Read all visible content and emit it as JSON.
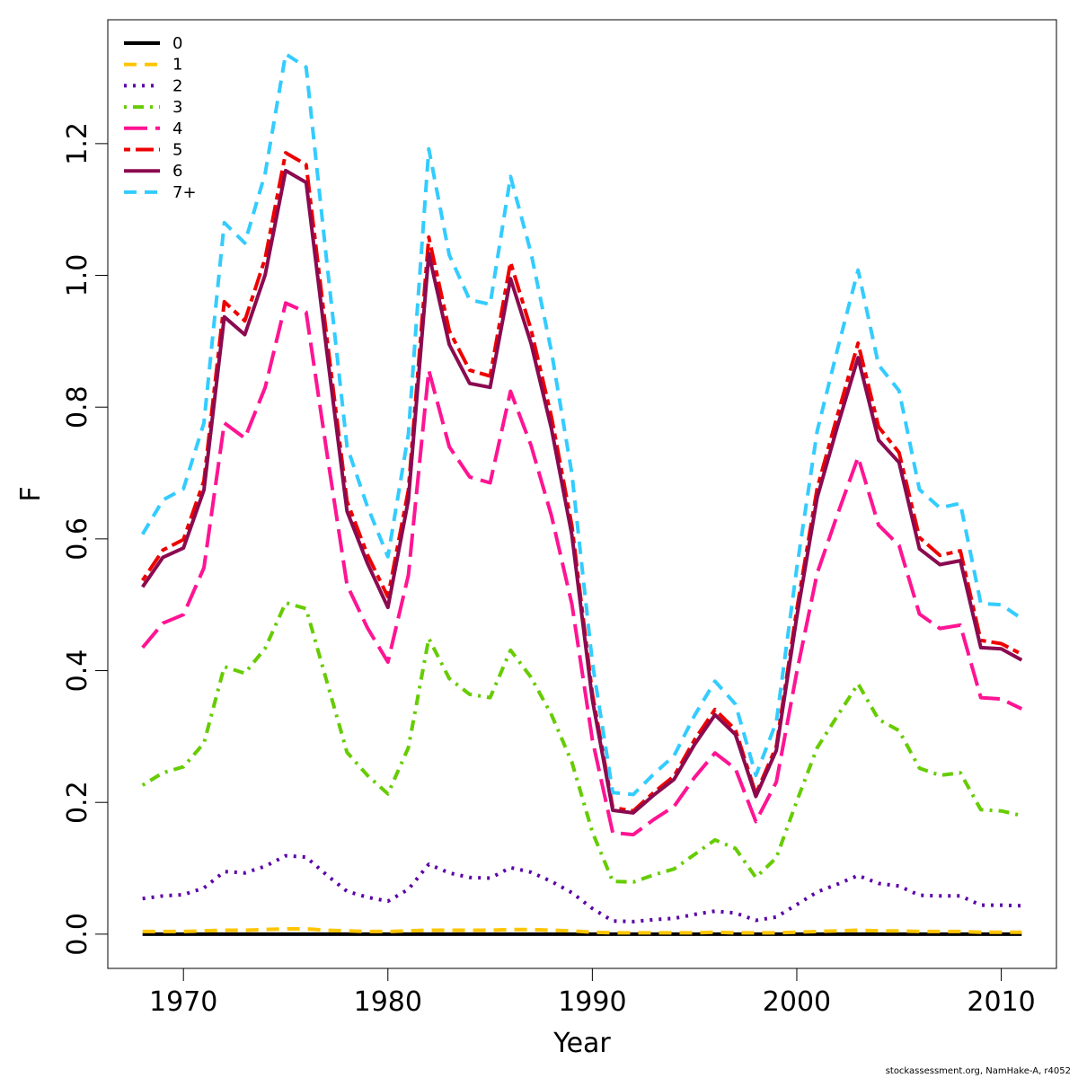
{
  "chart_data": {
    "type": "line",
    "title": "",
    "xlabel": "Year",
    "ylabel": "F",
    "xlim": [
      1966.3,
      2012.7
    ],
    "ylim": [
      -0.052,
      1.388
    ],
    "xticks": [
      1970,
      1980,
      1990,
      2000,
      2010
    ],
    "yticks": [
      "0.0",
      "0.2",
      "0.4",
      "0.6",
      "0.8",
      "1.0",
      "1.2"
    ],
    "legend_position": "top-left",
    "x": [
      1968,
      1969,
      1970,
      1971,
      1972,
      1973,
      1974,
      1975,
      1976,
      1977,
      1978,
      1979,
      1980,
      1981,
      1982,
      1983,
      1984,
      1985,
      1986,
      1987,
      1988,
      1989,
      1990,
      1991,
      1992,
      1993,
      1994,
      1995,
      1996,
      1997,
      1998,
      1999,
      2000,
      2001,
      2002,
      2003,
      2004,
      2005,
      2006,
      2007,
      2008,
      2009,
      2010,
      2011
    ],
    "series": [
      {
        "name": "0",
        "color": "#000000",
        "dash": "solid",
        "values": [
          0,
          0,
          0,
          0,
          0,
          0,
          0,
          0,
          0,
          0,
          0,
          0,
          0,
          0,
          0,
          0,
          0,
          0,
          0,
          0,
          0,
          0,
          0,
          0,
          0,
          0,
          0,
          0,
          0,
          0,
          0,
          0,
          0,
          0,
          0,
          0,
          0,
          0,
          0,
          0,
          0,
          0,
          0,
          0
        ]
      },
      {
        "name": "1",
        "color": "#FFC500",
        "dash": "dash",
        "values": [
          0.004,
          0.004,
          0.004,
          0.005,
          0.006,
          0.006,
          0.007,
          0.008,
          0.008,
          0.006,
          0.005,
          0.004,
          0.004,
          0.005,
          0.006,
          0.006,
          0.006,
          0.006,
          0.007,
          0.007,
          0.006,
          0.005,
          0.003,
          0.002,
          0.002,
          0.002,
          0.002,
          0.002,
          0.003,
          0.002,
          0.002,
          0.002,
          0.003,
          0.004,
          0.005,
          0.006,
          0.005,
          0.005,
          0.004,
          0.004,
          0.004,
          0.003,
          0.003,
          0.003
        ]
      },
      {
        "name": "2",
        "color": "#5B00A8",
        "dash": "dot",
        "values": [
          0.054,
          0.058,
          0.06,
          0.07,
          0.095,
          0.093,
          0.103,
          0.119,
          0.117,
          0.09,
          0.065,
          0.056,
          0.05,
          0.068,
          0.106,
          0.093,
          0.086,
          0.085,
          0.101,
          0.094,
          0.08,
          0.063,
          0.039,
          0.02,
          0.019,
          0.022,
          0.024,
          0.03,
          0.035,
          0.032,
          0.021,
          0.026,
          0.045,
          0.064,
          0.076,
          0.089,
          0.077,
          0.073,
          0.059,
          0.058,
          0.058,
          0.044,
          0.044,
          0.043
        ]
      },
      {
        "name": "3",
        "color": "#66CC00",
        "dash": "dotdash",
        "values": [
          0.226,
          0.245,
          0.254,
          0.29,
          0.406,
          0.396,
          0.434,
          0.503,
          0.494,
          0.385,
          0.276,
          0.241,
          0.213,
          0.283,
          0.449,
          0.388,
          0.364,
          0.359,
          0.431,
          0.39,
          0.333,
          0.261,
          0.155,
          0.08,
          0.079,
          0.09,
          0.099,
          0.121,
          0.143,
          0.13,
          0.086,
          0.116,
          0.202,
          0.283,
          0.332,
          0.38,
          0.326,
          0.309,
          0.252,
          0.241,
          0.245,
          0.189,
          0.187,
          0.18
        ]
      },
      {
        "name": "4",
        "color": "#FF1493",
        "dash": "longdash",
        "values": [
          0.435,
          0.472,
          0.485,
          0.556,
          0.776,
          0.753,
          0.83,
          0.958,
          0.944,
          0.734,
          0.53,
          0.465,
          0.413,
          0.545,
          0.856,
          0.74,
          0.694,
          0.685,
          0.824,
          0.742,
          0.635,
          0.501,
          0.295,
          0.154,
          0.151,
          0.174,
          0.194,
          0.238,
          0.275,
          0.251,
          0.171,
          0.231,
          0.398,
          0.548,
          0.638,
          0.724,
          0.621,
          0.59,
          0.486,
          0.464,
          0.469,
          0.359,
          0.357,
          0.342
        ]
      },
      {
        "name": "5",
        "color": "#EE0000",
        "dash": "twodash",
        "values": [
          0.537,
          0.583,
          0.599,
          0.688,
          0.96,
          0.931,
          1.026,
          1.186,
          1.168,
          0.909,
          0.657,
          0.576,
          0.512,
          0.674,
          1.058,
          0.916,
          0.856,
          0.847,
          1.02,
          0.918,
          0.785,
          0.62,
          0.365,
          0.192,
          0.187,
          0.215,
          0.24,
          0.295,
          0.341,
          0.31,
          0.213,
          0.285,
          0.493,
          0.677,
          0.789,
          0.897,
          0.77,
          0.731,
          0.602,
          0.575,
          0.582,
          0.446,
          0.441,
          0.425
        ]
      },
      {
        "name": "6",
        "color": "#8B0A50",
        "dash": "solid",
        "values": [
          0.527,
          0.572,
          0.586,
          0.674,
          0.937,
          0.91,
          1.001,
          1.159,
          1.141,
          0.888,
          0.642,
          0.563,
          0.496,
          0.659,
          1.033,
          0.895,
          0.836,
          0.83,
          0.995,
          0.897,
          0.767,
          0.606,
          0.356,
          0.188,
          0.184,
          0.211,
          0.235,
          0.288,
          0.333,
          0.303,
          0.209,
          0.279,
          0.482,
          0.663,
          0.772,
          0.875,
          0.75,
          0.716,
          0.585,
          0.561,
          0.567,
          0.435,
          0.433,
          0.416
        ]
      },
      {
        "name": "7+",
        "color": "#33CCFF",
        "dash": "dash",
        "values": [
          0.607,
          0.659,
          0.676,
          0.776,
          1.08,
          1.049,
          1.155,
          1.336,
          1.316,
          1.024,
          0.74,
          0.649,
          0.573,
          0.759,
          1.192,
          1.031,
          0.963,
          0.956,
          1.15,
          1.034,
          0.884,
          0.699,
          0.412,
          0.215,
          0.212,
          0.243,
          0.271,
          0.332,
          0.384,
          0.349,
          0.241,
          0.322,
          0.556,
          0.764,
          0.889,
          1.008,
          0.864,
          0.825,
          0.675,
          0.647,
          0.654,
          0.502,
          0.5,
          0.479
        ]
      }
    ]
  },
  "footer": {
    "credit": "stockassessment.org, NamHake-A, r4052"
  }
}
